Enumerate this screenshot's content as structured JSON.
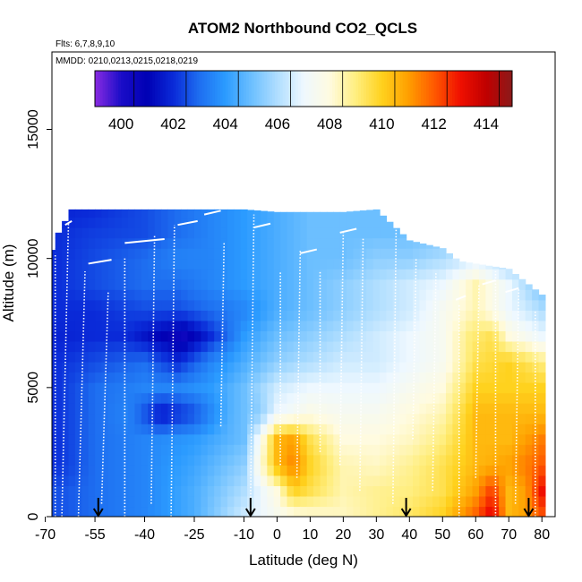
{
  "chart_data": {
    "type": "heatmap",
    "title": "ATOM2 Northbound CO2_QCLS",
    "flights_note": "Flts: 6,7,8,9,10",
    "dates_note": "MMDD: 0210,0213,0215,0218,0219",
    "xlabel": "Latitude (deg N)",
    "ylabel": "Altitude (m)",
    "xlim": [
      -68,
      84
    ],
    "ylim": [
      0,
      18000
    ],
    "x_ticks": [
      -70,
      -55,
      -40,
      -25,
      -10,
      0,
      10,
      20,
      30,
      40,
      50,
      60,
      70,
      80
    ],
    "y_ticks": [
      0,
      5000,
      10000,
      15000
    ],
    "colorbar": {
      "label_values": [
        400,
        402,
        404,
        406,
        408,
        410,
        412,
        414
      ],
      "range": [
        399,
        415
      ],
      "stops": [
        {
          "v": 399,
          "color": "#8a2be2"
        },
        {
          "v": 400,
          "color": "#1a0dc8"
        },
        {
          "v": 401,
          "color": "#0000b4"
        },
        {
          "v": 402,
          "color": "#0a2ad8"
        },
        {
          "v": 403,
          "color": "#1e6ef0"
        },
        {
          "v": 404,
          "color": "#2b9bff"
        },
        {
          "v": 405,
          "color": "#6cbfff"
        },
        {
          "v": 406,
          "color": "#b0deff"
        },
        {
          "v": 407,
          "color": "#eef8ff"
        },
        {
          "v": 408,
          "color": "#fffbe0"
        },
        {
          "v": 409,
          "color": "#ffee80"
        },
        {
          "v": 410,
          "color": "#ffd21e"
        },
        {
          "v": 411,
          "color": "#ffa000"
        },
        {
          "v": 412,
          "color": "#ff5a00"
        },
        {
          "v": 413,
          "color": "#f01000"
        },
        {
          "v": 414,
          "color": "#c00000"
        },
        {
          "v": 415,
          "color": "#8b1a1a"
        }
      ]
    },
    "field_lat_range": [
      -69,
      80
    ],
    "field_top_profile": {
      "lat": [
        -69,
        -66,
        -62,
        -55,
        -50,
        -40,
        -20,
        -10,
        0,
        20,
        30,
        40,
        50,
        55,
        60,
        70,
        80
      ],
      "alt_top": [
        10000,
        11000,
        11900,
        11900,
        11900,
        11900,
        11900,
        11900,
        11800,
        11800,
        11900,
        10700,
        10400,
        9900,
        9800,
        9600,
        8600
      ]
    },
    "field_cell": {
      "lat_step": 2,
      "alt_step": 400
    },
    "field_rows": [
      {
        "alt": 0,
        "lat": [
          -68,
          -55,
          -40,
          -25,
          -10,
          0,
          10,
          20,
          30,
          40,
          50,
          60,
          65,
          70,
          75,
          80
        ],
        "co2": [
          402.5,
          403,
          403.5,
          404.5,
          406.5,
          407.5,
          408,
          408.3,
          408.8,
          409.3,
          410,
          412,
          413.5,
          410.5,
          411,
          412
        ]
      },
      {
        "alt": 1000,
        "lat": [
          -68,
          -55,
          -40,
          -25,
          -10,
          0,
          5,
          10,
          20,
          30,
          40,
          50,
          60,
          65,
          70,
          75,
          80
        ],
        "co2": [
          402.5,
          403,
          403.5,
          404.5,
          406,
          408,
          410,
          409.5,
          408.5,
          408.8,
          409,
          409.5,
          411,
          412.5,
          410.5,
          411,
          413
        ]
      },
      {
        "alt": 2000,
        "lat": [
          -68,
          -55,
          -40,
          -25,
          -10,
          -5,
          0,
          5,
          10,
          20,
          30,
          40,
          50,
          60,
          70,
          80
        ],
        "co2": [
          402,
          403,
          403.5,
          404.3,
          405.5,
          408,
          410.5,
          411.5,
          410,
          408.5,
          408.3,
          408.8,
          409.5,
          410.5,
          411,
          412
        ]
      },
      {
        "alt": 3000,
        "lat": [
          -68,
          -55,
          -40,
          -25,
          -10,
          -5,
          0,
          5,
          10,
          20,
          30,
          40,
          50,
          60,
          70,
          80
        ],
        "co2": [
          402,
          403,
          403.5,
          404,
          405,
          407.5,
          410.5,
          411,
          409.5,
          408,
          408,
          408.3,
          409,
          410.5,
          410.5,
          411.5
        ]
      },
      {
        "alt": 4000,
        "lat": [
          -68,
          -55,
          -45,
          -35,
          -25,
          -15,
          -5,
          0,
          10,
          20,
          30,
          40,
          50,
          60,
          70,
          80
        ],
        "co2": [
          402,
          403,
          403.5,
          401.5,
          402.5,
          404.5,
          405.5,
          407,
          407.8,
          407.5,
          407.5,
          408,
          408.5,
          410.5,
          410.5,
          410.5
        ]
      },
      {
        "alt": 5000,
        "lat": [
          -68,
          -55,
          -40,
          -30,
          -20,
          -10,
          0,
          10,
          20,
          30,
          40,
          50,
          60,
          70,
          80
        ],
        "co2": [
          402,
          403,
          403.5,
          403.5,
          404,
          405,
          406.5,
          407,
          407,
          407,
          407.5,
          408,
          410,
          410,
          410
        ]
      },
      {
        "alt": 6000,
        "lat": [
          -68,
          -55,
          -40,
          -30,
          -20,
          -10,
          0,
          10,
          20,
          30,
          40,
          50,
          60,
          70,
          80
        ],
        "co2": [
          402,
          402.5,
          403,
          402,
          403.5,
          404.5,
          405.5,
          406,
          406.5,
          406.5,
          407,
          407.5,
          409.5,
          410,
          409
        ]
      },
      {
        "alt": 7000,
        "lat": [
          -68,
          -55,
          -45,
          -35,
          -28,
          -20,
          -10,
          0,
          10,
          20,
          30,
          40,
          50,
          58,
          65,
          70,
          80
        ],
        "co2": [
          401.8,
          402,
          402,
          401,
          400.5,
          402,
          404,
          405,
          405.5,
          406,
          406.5,
          407,
          407.5,
          409,
          409.5,
          408,
          407
        ]
      },
      {
        "alt": 8000,
        "lat": [
          -68,
          -55,
          -40,
          -30,
          -20,
          -10,
          0,
          10,
          20,
          30,
          40,
          50,
          60,
          70,
          80
        ],
        "co2": [
          402,
          402,
          402.5,
          402.5,
          403,
          403.5,
          404.5,
          405,
          405.5,
          406,
          406.5,
          407.5,
          408.5,
          407,
          406
        ]
      },
      {
        "alt": 9000,
        "lat": [
          -68,
          -55,
          -40,
          -30,
          -20,
          -10,
          0,
          10,
          20,
          30,
          40,
          50,
          60,
          70,
          80
        ],
        "co2": [
          402,
          402.5,
          403,
          403,
          403.5,
          404,
          404.5,
          405,
          405.5,
          406,
          406.5,
          407,
          408.5,
          407,
          405
        ]
      },
      {
        "alt": 10000,
        "lat": [
          -68,
          -55,
          -40,
          -30,
          -20,
          -10,
          0,
          10,
          20,
          30,
          40,
          50,
          60,
          70
        ],
        "co2": [
          402,
          402.5,
          403,
          403.5,
          403.5,
          404,
          404.5,
          405,
          405,
          405.5,
          405.5,
          406,
          406.5,
          405.5
        ]
      },
      {
        "alt": 11000,
        "lat": [
          -68,
          -55,
          -40,
          -30,
          -20,
          -10,
          0,
          10,
          20,
          30,
          40
        ],
        "co2": [
          402,
          402.3,
          402.5,
          403,
          403.5,
          404,
          404.5,
          405,
          405,
          405,
          405
        ]
      },
      {
        "alt": 11900,
        "lat": [
          -68,
          -55,
          -40,
          -30,
          -20,
          -10,
          0,
          10,
          20,
          30,
          40
        ],
        "co2": [
          401.8,
          402,
          402.5,
          403,
          403.5,
          404,
          404.5,
          405,
          405,
          405,
          405
        ]
      }
    ],
    "profiles": [
      {
        "lat_start": -69,
        "lat_end": -69,
        "alt_bottom": 0,
        "alt_top": 9500
      },
      {
        "lat_start": -67,
        "lat_end": -67,
        "alt_bottom": 0,
        "alt_top": 10200
      },
      {
        "lat_start": -65,
        "lat_end": -63,
        "alt_bottom": 0,
        "alt_top": 11400
      },
      {
        "lat_start": -60,
        "lat_end": -58,
        "alt_bottom": 0,
        "alt_top": 9500
      },
      {
        "lat_start": -53,
        "lat_end": -51,
        "alt_bottom": 500,
        "alt_top": 8700
      },
      {
        "lat_start": -46,
        "lat_end": -46,
        "alt_bottom": 0,
        "alt_top": 10000
      },
      {
        "lat_start": -38,
        "lat_end": -37,
        "alt_bottom": 500,
        "alt_top": 10900
      },
      {
        "lat_start": -32,
        "lat_end": -31,
        "alt_bottom": 0,
        "alt_top": 11300
      },
      {
        "lat_start": -17,
        "lat_end": -16,
        "alt_bottom": 3500,
        "alt_top": 10600
      },
      {
        "lat_start": -8,
        "lat_end": -7,
        "alt_bottom": 500,
        "alt_top": 11700
      },
      {
        "lat_start": 1,
        "lat_end": 1,
        "alt_bottom": 2000,
        "alt_top": 9500
      },
      {
        "lat_start": 6,
        "lat_end": 7,
        "alt_bottom": 1500,
        "alt_top": 10300
      },
      {
        "lat_start": 13,
        "lat_end": 13,
        "alt_bottom": 2500,
        "alt_top": 9500
      },
      {
        "lat_start": 19,
        "lat_end": 20,
        "alt_bottom": 2000,
        "alt_top": 11000
      },
      {
        "lat_start": 25,
        "lat_end": 26,
        "alt_bottom": 1000,
        "alt_top": 10800
      },
      {
        "lat_start": 35,
        "lat_end": 36,
        "alt_bottom": 500,
        "alt_top": 11500
      },
      {
        "lat_start": 41,
        "lat_end": 42,
        "alt_bottom": 3000,
        "alt_top": 10000
      },
      {
        "lat_start": 47,
        "lat_end": 48,
        "alt_bottom": 1000,
        "alt_top": 9500
      },
      {
        "lat_start": 55,
        "lat_end": 55,
        "alt_bottom": 0,
        "alt_top": 8200
      },
      {
        "lat_start": 60,
        "lat_end": 61,
        "alt_bottom": 1500,
        "alt_top": 9000
      },
      {
        "lat_start": 66,
        "lat_end": 66,
        "alt_bottom": 0,
        "alt_top": 9500
      },
      {
        "lat_start": 72,
        "lat_end": 73,
        "alt_bottom": 500,
        "alt_top": 8800
      },
      {
        "lat_start": 78,
        "lat_end": 78,
        "alt_bottom": 0,
        "alt_top": 8000
      }
    ],
    "flight_legs": [
      {
        "lat_start": -64,
        "lat_end": -62,
        "alt": 11300
      },
      {
        "lat_start": -57,
        "lat_end": -50,
        "alt": 9800
      },
      {
        "lat_start": -46,
        "lat_end": -34,
        "alt": 10600
      },
      {
        "lat_start": -30,
        "lat_end": -24,
        "alt": 11300
      },
      {
        "lat_start": -22,
        "lat_end": -17,
        "alt": 11700
      },
      {
        "lat_start": -7,
        "lat_end": -2,
        "alt": 11200
      },
      {
        "lat_start": 7,
        "lat_end": 12,
        "alt": 10200
      },
      {
        "lat_start": 19,
        "lat_end": 24,
        "alt": 11000
      },
      {
        "lat_start": 36,
        "lat_end": 40,
        "alt": 11700
      },
      {
        "lat_start": 54,
        "lat_end": 57,
        "alt": 8400
      },
      {
        "lat_start": 62,
        "lat_end": 66,
        "alt": 9000
      },
      {
        "lat_start": 69,
        "lat_end": 73,
        "alt": 8700
      }
    ],
    "arrows_lat": [
      -54,
      -8,
      39,
      76
    ]
  }
}
